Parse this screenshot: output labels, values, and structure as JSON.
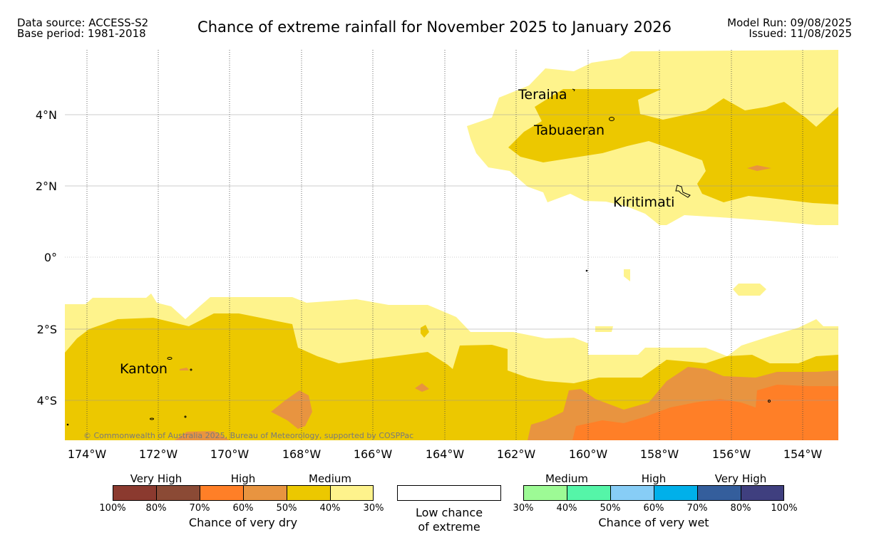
{
  "header": {
    "source_line1": "Data source: ACCESS-S2",
    "source_line2": "Base period: 1981-2018",
    "title": "Chance of extreme rainfall for November 2025 to January 2026",
    "model_run": "Model Run: 09/08/2025",
    "issued": "Issued: 11/08/2025"
  },
  "map": {
    "longitude_labels": [
      "174°W",
      "172°W",
      "170°W",
      "168°W",
      "166°W",
      "164°W",
      "162°W",
      "160°W",
      "158°W",
      "156°W",
      "154°W"
    ],
    "latitude_labels": [
      "4°N",
      "2°N",
      "0°",
      "2°S",
      "4°S"
    ],
    "places": [
      "Teraina",
      "Tabuaeran",
      "Kiritimati",
      "Kanton"
    ],
    "copyright": "© Commonwealth of Australia 2025, Bureau of Meteorology, supported by COSPPac"
  },
  "legend": {
    "dry": {
      "categories": [
        "Very High",
        "High",
        "Medium"
      ],
      "ticks": [
        "100%",
        "80%",
        "70%",
        "60%",
        "50%",
        "40%",
        "30%"
      ],
      "colors": [
        "#8b3a2f",
        "#8b4a35",
        "#ff7f27",
        "#e89440",
        "#ecc800",
        "#fef38c"
      ],
      "caption": "Chance of very dry"
    },
    "low": {
      "caption_line1": "Low chance",
      "caption_line2": "of extreme",
      "color": "#ffffff"
    },
    "wet": {
      "categories": [
        "Medium",
        "High",
        "Very High"
      ],
      "ticks": [
        "30%",
        "40%",
        "50%",
        "60%",
        "70%",
        "80%",
        "100%"
      ],
      "colors": [
        "#9dfa95",
        "#55f5a8",
        "#87cdf6",
        "#00b0ea",
        "#345e9c",
        "#3f3f7f"
      ],
      "caption": "Chance of very wet"
    }
  }
}
